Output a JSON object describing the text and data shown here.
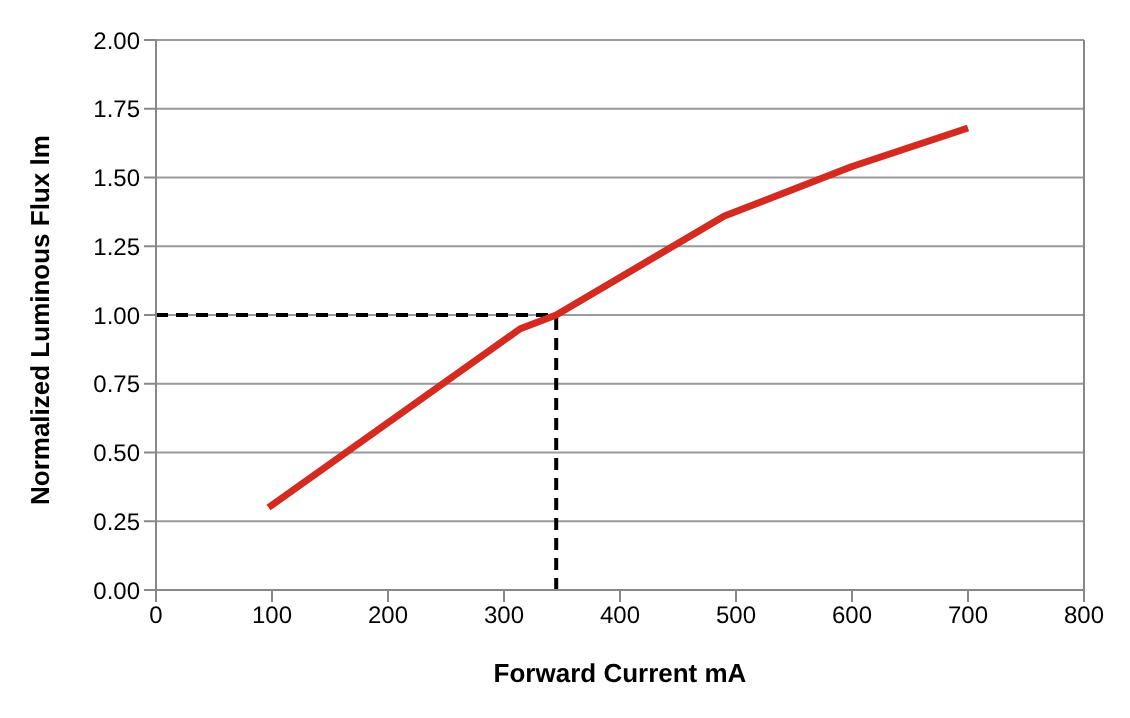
{
  "chart_data": {
    "type": "line",
    "xlabel": "Forward Current mA",
    "ylabel": "Normalized Luminous Flux lm",
    "x": [
      97,
      314,
      345,
      490,
      600,
      700
    ],
    "series": [
      {
        "color": "#d42a20",
        "values": [
          0.3,
          0.95,
          1.0,
          1.36,
          1.54,
          1.68
        ]
      }
    ],
    "xlim": [
      0,
      800
    ],
    "xticks": [
      0,
      100,
      200,
      300,
      400,
      500,
      600,
      700,
      800
    ],
    "ylim": [
      0,
      2
    ],
    "yticks": [
      {
        "value": 0,
        "label": "0.00"
      },
      {
        "value": 0.25,
        "label": "0.25"
      },
      {
        "value": 0.5,
        "label": "0.50"
      },
      {
        "value": 0.75,
        "label": "0.75"
      },
      {
        "value": 1,
        "label": "1.00"
      },
      {
        "value": 1.25,
        "label": "1.25"
      },
      {
        "value": 1.5,
        "label": "1.50"
      },
      {
        "value": 1.75,
        "label": "1.75"
      },
      {
        "value": 2,
        "label": "2.00"
      }
    ],
    "ref_lines": [
      {
        "axis": "y",
        "value": 1.0,
        "color": "#000000",
        "line_style": "dashed"
      },
      {
        "axis": "x",
        "value": 345,
        "color": "#000000",
        "line_style": "dashed"
      }
    ],
    "grid": "y",
    "legend": false,
    "marker": "none",
    "line_style": "solid"
  }
}
